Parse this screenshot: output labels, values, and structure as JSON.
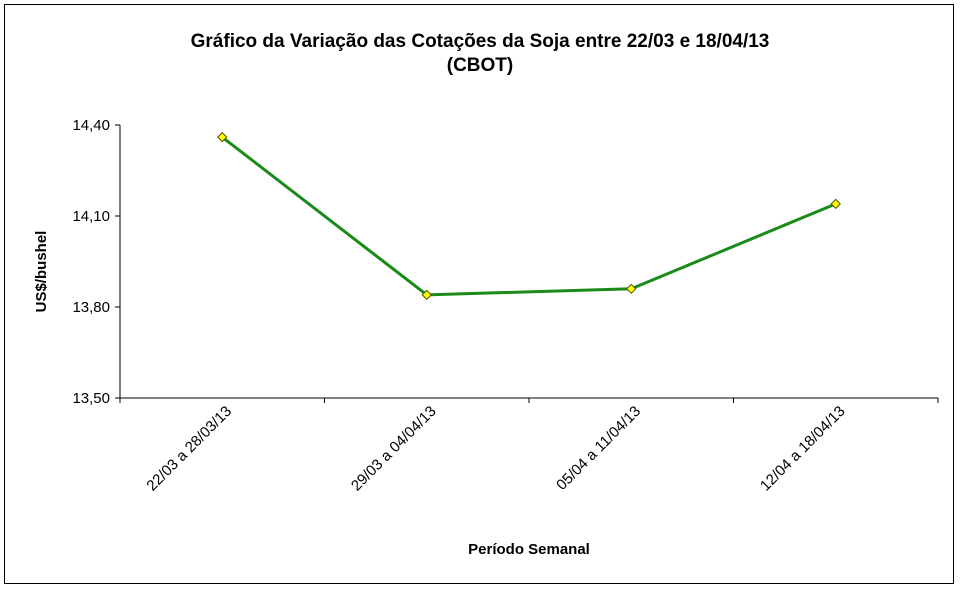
{
  "chart_data": {
    "type": "line",
    "title": "Gráfico da Variação das Cotações da Soja entre 22/03 e 18/04/13",
    "subtitle": "(CBOT)",
    "xlabel": "Período Semanal",
    "ylabel": "US$/bushel",
    "categories": [
      "22/03 a 28/03/13",
      "29/03 a 04/04/13",
      "05/04 a 11/04/13",
      "12/04 a 18/04/13"
    ],
    "values": [
      14.36,
      13.84,
      13.86,
      14.14
    ],
    "ylim": [
      13.5,
      14.4
    ],
    "yticks": [
      "13,50",
      "13,80",
      "14,10",
      "14,40"
    ],
    "ytick_values": [
      13.5,
      13.8,
      14.1,
      14.4
    ],
    "line_color": "#1a8a1a",
    "marker_color": "#ffff00",
    "grid": false,
    "legend": "none"
  }
}
